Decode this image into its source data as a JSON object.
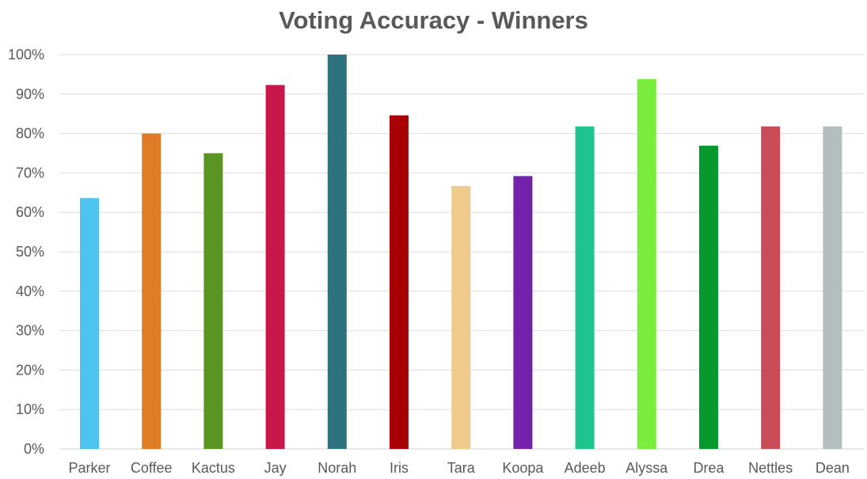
{
  "chart_data": {
    "type": "bar",
    "title": "Voting Accuracy - Winners",
    "xlabel": "",
    "ylabel": "",
    "ylim": [
      0,
      100
    ],
    "y_ticks": [
      "0%",
      "10%",
      "20%",
      "30%",
      "40%",
      "50%",
      "60%",
      "70%",
      "80%",
      "90%",
      "100%"
    ],
    "y_tick_values": [
      0,
      10,
      20,
      30,
      40,
      50,
      60,
      70,
      80,
      90,
      100
    ],
    "grid": true,
    "legend": "none",
    "categories": [
      "Parker",
      "Coffee",
      "Kactus",
      "Jay",
      "Norah",
      "Iris",
      "Tara",
      "Koopa",
      "Adeeb",
      "Alyssa",
      "Drea",
      "Nettles",
      "Dean"
    ],
    "values": [
      63.6,
      80.0,
      75.0,
      92.3,
      100.0,
      84.6,
      66.7,
      69.2,
      81.8,
      93.8,
      76.9,
      81.8,
      81.8
    ],
    "colors": [
      "#4dc3f0",
      "#e07b26",
      "#5a9423",
      "#c8174b",
      "#2e727d",
      "#a90005",
      "#eecb8d",
      "#7321aa",
      "#1fc58e",
      "#7bed3d",
      "#069a2e",
      "#c94c58",
      "#b4bebf"
    ]
  }
}
